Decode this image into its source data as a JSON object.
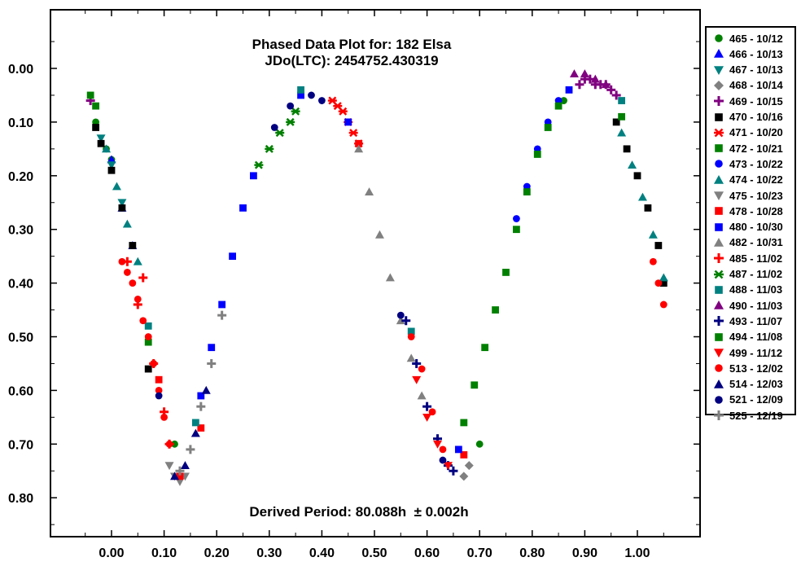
{
  "chart_data": {
    "type": "scatter",
    "title": "Phased Data Plot for: 182 Elsa",
    "subtitle": "JDo(LTC): 2454752.430319",
    "annotation": "Derived Period: 80.088h  ± 0.002h",
    "xlabel": "",
    "ylabel": "",
    "xlim": [
      -0.12,
      1.12
    ],
    "ylim": [
      -0.1,
      0.88
    ],
    "y_inverted": true,
    "grid": false,
    "legend_position": "right-outside",
    "x_ticks": [
      "0.00",
      "0.10",
      "0.20",
      "0.30",
      "0.40",
      "0.50",
      "0.60",
      "0.70",
      "0.80",
      "0.90",
      "1.00"
    ],
    "y_ticks": [
      "0.00",
      "0.10",
      "0.20",
      "0.30",
      "0.40",
      "0.50",
      "0.60",
      "0.70",
      "0.80"
    ],
    "series": [
      {
        "name": "465 - 10/12",
        "color": "#008000",
        "marker": "circle",
        "x": [
          -0.03,
          -0.01,
          0.0,
          0.08,
          0.12,
          0.7,
          0.86
        ],
        "y": [
          0.1,
          0.15,
          0.17,
          0.55,
          0.7,
          0.7,
          0.06
        ]
      },
      {
        "name": "466 - 10/13",
        "color": "#0000FF",
        "marker": "triangle-up",
        "x": [
          0.0,
          0.02,
          0.04
        ],
        "y": [
          0.17,
          0.26,
          0.33
        ]
      },
      {
        "name": "467 - 10/13",
        "color": "#008080",
        "marker": "triangle-down",
        "x": [
          -0.02,
          0.0,
          0.02
        ],
        "y": [
          0.13,
          0.18,
          0.25
        ]
      },
      {
        "name": "468 - 10/14",
        "color": "#808080",
        "marker": "diamond",
        "x": [
          0.67,
          0.68
        ],
        "y": [
          0.76,
          0.74
        ]
      },
      {
        "name": "469 - 10/15",
        "color": "#800080",
        "marker": "plus",
        "x": [
          -0.04,
          0.89,
          0.9,
          0.91,
          0.92,
          0.93,
          0.94,
          0.95,
          0.96
        ],
        "y": [
          0.06,
          0.03,
          0.02,
          0.02,
          0.03,
          0.03,
          0.03,
          0.04,
          0.05
        ]
      },
      {
        "name": "470 - 10/16",
        "color": "#000000",
        "marker": "square",
        "x": [
          -0.03,
          -0.02,
          0.0,
          0.02,
          0.04,
          0.07,
          0.96,
          0.98,
          1.0,
          1.02,
          1.04,
          1.05
        ],
        "y": [
          0.11,
          0.14,
          0.19,
          0.26,
          0.33,
          0.56,
          0.1,
          0.15,
          0.2,
          0.26,
          0.33,
          0.4
        ]
      },
      {
        "name": "471 - 10/20",
        "color": "#FF0000",
        "marker": "asterisk",
        "x": [
          0.42,
          0.43,
          0.44,
          0.45,
          0.46,
          0.47
        ],
        "y": [
          0.06,
          0.07,
          0.08,
          0.1,
          0.12,
          0.14
        ]
      },
      {
        "name": "472 - 10/21",
        "color": "#008000",
        "marker": "square",
        "x": [
          -0.04,
          -0.03,
          0.07
        ],
        "y": [
          0.05,
          0.07,
          0.51
        ]
      },
      {
        "name": "473 - 10/22",
        "color": "#0000FF",
        "marker": "circle",
        "x": [
          0.77,
          0.79,
          0.81,
          0.83,
          0.85
        ],
        "y": [
          0.28,
          0.22,
          0.15,
          0.1,
          0.06
        ]
      },
      {
        "name": "474 - 10/22",
        "color": "#008080",
        "marker": "triangle-up",
        "x": [
          -0.01,
          0.01,
          0.03,
          0.05,
          0.97,
          0.99,
          1.01,
          1.03,
          1.05
        ],
        "y": [
          0.15,
          0.22,
          0.29,
          0.36,
          0.12,
          0.18,
          0.24,
          0.31,
          0.39
        ]
      },
      {
        "name": "475 - 10/23",
        "color": "#808080",
        "marker": "triangle-down",
        "x": [
          0.11,
          0.12,
          0.13,
          0.14
        ],
        "y": [
          0.74,
          0.76,
          0.77,
          0.76
        ]
      },
      {
        "name": "478 - 10/28",
        "color": "#FF0000",
        "marker": "square",
        "x": [
          0.09,
          0.13,
          0.17,
          0.47,
          0.67
        ],
        "y": [
          0.58,
          0.76,
          0.67,
          0.14,
          0.72
        ]
      },
      {
        "name": "480 - 10/30",
        "color": "#0000FF",
        "marker": "square",
        "x": [
          0.17,
          0.19,
          0.21,
          0.23,
          0.25,
          0.27,
          0.36,
          0.45,
          0.66,
          0.87
        ],
        "y": [
          0.61,
          0.52,
          0.44,
          0.35,
          0.26,
          0.2,
          0.05,
          0.1,
          0.71,
          0.04
        ]
      },
      {
        "name": "482 - 10/31",
        "color": "#808080",
        "marker": "triangle-up",
        "x": [
          0.47,
          0.49,
          0.51,
          0.53,
          0.55,
          0.57,
          0.59
        ],
        "y": [
          0.15,
          0.23,
          0.31,
          0.39,
          0.47,
          0.54,
          0.61
        ]
      },
      {
        "name": "485 - 11/02",
        "color": "#FF0000",
        "marker": "plus",
        "x": [
          0.03,
          0.05,
          0.06,
          0.08,
          0.1,
          0.11
        ],
        "y": [
          0.36,
          0.44,
          0.39,
          0.55,
          0.64,
          0.7
        ]
      },
      {
        "name": "487 - 11/02",
        "color": "#008000",
        "marker": "asterisk",
        "x": [
          0.28,
          0.3,
          0.32,
          0.34,
          0.35
        ],
        "y": [
          0.18,
          0.15,
          0.12,
          0.1,
          0.08
        ]
      },
      {
        "name": "488 - 11/03",
        "color": "#008080",
        "marker": "square",
        "x": [
          0.07,
          0.16,
          0.36,
          0.57,
          0.97
        ],
        "y": [
          0.48,
          0.66,
          0.04,
          0.49,
          0.06
        ]
      },
      {
        "name": "490 - 11/03",
        "color": "#800080",
        "marker": "triangle-up",
        "x": [
          0.88,
          0.9,
          0.92,
          0.94
        ],
        "y": [
          0.01,
          0.01,
          0.02,
          0.03
        ]
      },
      {
        "name": "493 - 11/07",
        "color": "#000080",
        "marker": "plus",
        "x": [
          0.56,
          0.58,
          0.6,
          0.62,
          0.64,
          0.65
        ],
        "y": [
          0.47,
          0.55,
          0.63,
          0.69,
          0.74,
          0.75
        ]
      },
      {
        "name": "494 - 11/08",
        "color": "#008000",
        "marker": "square",
        "x": [
          0.67,
          0.69,
          0.71,
          0.73,
          0.75,
          0.77,
          0.79,
          0.81,
          0.83,
          0.85,
          0.97
        ],
        "y": [
          0.66,
          0.59,
          0.52,
          0.45,
          0.38,
          0.3,
          0.23,
          0.16,
          0.11,
          0.07,
          0.09
        ]
      },
      {
        "name": "499 - 11/12",
        "color": "#FF0000",
        "marker": "triangle-down",
        "x": [
          0.58,
          0.6,
          0.62,
          0.64
        ],
        "y": [
          0.58,
          0.65,
          0.7,
          0.74
        ]
      },
      {
        "name": "513 - 12/02",
        "color": "#FF0000",
        "marker": "circle",
        "x": [
          0.02,
          0.03,
          0.04,
          0.05,
          0.06,
          0.07,
          0.08,
          0.09,
          0.1,
          0.11,
          0.57,
          0.59,
          0.61,
          0.63,
          1.03,
          1.04,
          1.05
        ],
        "y": [
          0.36,
          0.38,
          0.4,
          0.43,
          0.47,
          0.5,
          0.55,
          0.6,
          0.65,
          0.7,
          0.5,
          0.56,
          0.64,
          0.71,
          0.36,
          0.4,
          0.44
        ]
      },
      {
        "name": "514 - 12/03",
        "color": "#000080",
        "marker": "triangle-up",
        "x": [
          0.12,
          0.14,
          0.16,
          0.18
        ],
        "y": [
          0.76,
          0.74,
          0.68,
          0.6
        ]
      },
      {
        "name": "521 - 12/09",
        "color": "#000080",
        "marker": "circle",
        "x": [
          0.09,
          0.31,
          0.34,
          0.38,
          0.4,
          0.55,
          0.63
        ],
        "y": [
          0.61,
          0.11,
          0.07,
          0.05,
          0.06,
          0.46,
          0.73
        ]
      },
      {
        "name": "525 - 12/19",
        "color": "#808080",
        "marker": "plus",
        "x": [
          0.13,
          0.15,
          0.17,
          0.19,
          0.21
        ],
        "y": [
          0.75,
          0.71,
          0.63,
          0.55,
          0.46
        ]
      }
    ]
  }
}
